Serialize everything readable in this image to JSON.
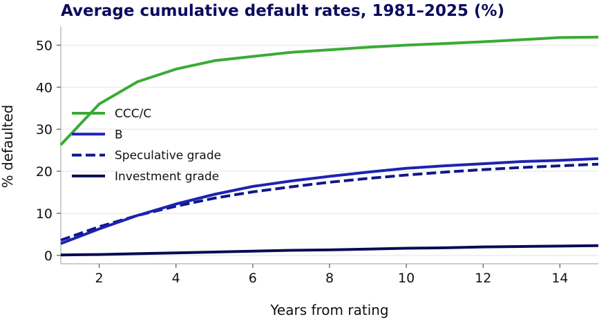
{
  "chart_data": {
    "type": "line",
    "title": "Average cumulative default rates, 1981–2025 (%)",
    "xlabel": "Years from rating",
    "ylabel": "% defaulted",
    "xlim": [
      1,
      15
    ],
    "ylim": [
      -2,
      54.5
    ],
    "x_ticks": [
      2,
      4,
      6,
      8,
      10,
      12,
      14
    ],
    "y_ticks": [
      0,
      10,
      20,
      30,
      40,
      50
    ],
    "grid": "horizontal",
    "legend_position": "center-left",
    "x": [
      1,
      2,
      3,
      4,
      5,
      6,
      7,
      8,
      9,
      10,
      11,
      12,
      13,
      14,
      15
    ],
    "series": [
      {
        "name": "CCC/C",
        "color": "#3aaa35",
        "dash": "solid",
        "values": [
          26.3,
          36.0,
          41.3,
          44.3,
          46.3,
          47.3,
          48.3,
          48.9,
          49.5,
          50.0,
          50.4,
          50.8,
          51.3,
          51.8,
          51.9
        ]
      },
      {
        "name": "B",
        "color": "#1c23b0",
        "dash": "solid",
        "values": [
          2.8,
          6.3,
          9.5,
          12.2,
          14.5,
          16.4,
          17.7,
          18.8,
          19.8,
          20.7,
          21.3,
          21.8,
          22.3,
          22.6,
          23.0
        ]
      },
      {
        "name": "Speculative grade",
        "color": "#0f168a",
        "dash": "dashed",
        "values": [
          3.6,
          6.8,
          9.5,
          11.7,
          13.6,
          15.1,
          16.3,
          17.4,
          18.3,
          19.1,
          19.8,
          20.4,
          20.9,
          21.3,
          21.7
        ]
      },
      {
        "name": "Investment grade",
        "color": "#070b52",
        "dash": "solid",
        "values": [
          0.1,
          0.2,
          0.4,
          0.6,
          0.8,
          1.0,
          1.2,
          1.3,
          1.5,
          1.7,
          1.8,
          2.0,
          2.1,
          2.2,
          2.3
        ]
      }
    ]
  }
}
